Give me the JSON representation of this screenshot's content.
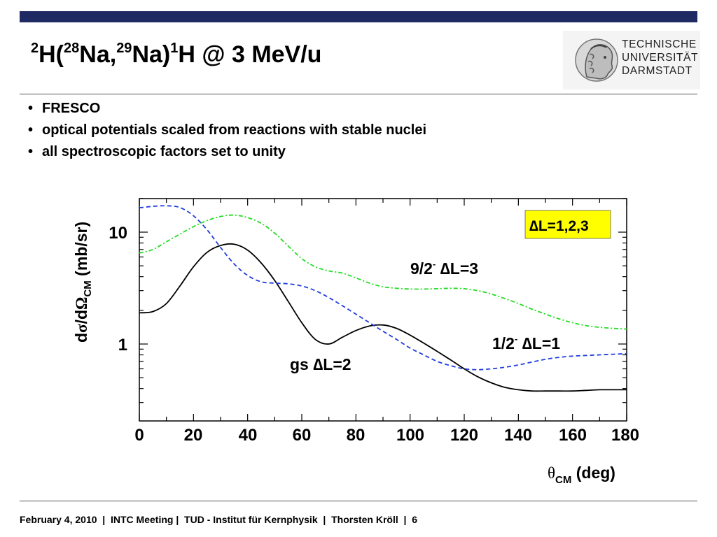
{
  "slide": {
    "title": {
      "m1": "2",
      "t1": "H(",
      "m2": "28",
      "t2": "Na,",
      "m3": "29",
      "t3": "Na)",
      "m4": "1",
      "t4": "H @ 3 MeV/u"
    },
    "logo": {
      "lines": [
        "TECHNISCHE",
        "UNIVERSITÄT",
        "DARMSTADT"
      ]
    },
    "bullets": [
      "FRESCO",
      "optical potentials scaled from reactions with stable nuclei",
      "all spectroscopic factors set to unity"
    ],
    "footer": {
      "date": "February 4, 2010",
      "event": "INTC Meeting",
      "institute": "TUD - Institut für Kernphysik",
      "author": "Thorsten Kröll",
      "page": "6",
      "separator": "|"
    }
  },
  "colors": {
    "brand_bar": "#1f2a63",
    "series_gs": "#000000",
    "series_half": "#1f3de0",
    "series_ninehalf": "#22dd22",
    "highlight_box": "#ffff00"
  },
  "chart_data": {
    "type": "line",
    "xlim": [
      0,
      180
    ],
    "ylim": [
      0.2,
      20
    ],
    "yscale": "log",
    "x_ticks": [
      "0",
      "20",
      "40",
      "60",
      "80",
      "100",
      "120",
      "140",
      "160",
      "180"
    ],
    "x_tick_values": [
      0,
      20,
      40,
      60,
      80,
      100,
      120,
      140,
      160,
      180
    ],
    "y_ticks": [
      "1",
      "10"
    ],
    "y_tick_values": [
      1,
      10
    ],
    "ylabel": {
      "d1": "d",
      "sigma": "σ",
      "mid": "/d",
      "omega": "Ω",
      "sub": "CM",
      "unit": " (mb/sr)"
    },
    "xlabel": {
      "theta": "θ",
      "sub": "CM",
      "unit": " (deg)"
    },
    "box_label": "∆L=1,2,3",
    "annotations": {
      "gs": "gs ∆L=2",
      "half": {
        "base": "1/2",
        "sup": "-",
        "rest": " ∆L=1"
      },
      "ninehalf": {
        "base": "9/2",
        "sup": "-",
        "rest": " ∆L=3"
      }
    },
    "series": [
      {
        "label_ref": "gs",
        "style": "solid",
        "x": [
          0,
          5,
          10,
          15,
          20,
          25,
          30,
          35,
          40,
          45,
          50,
          55,
          60,
          65,
          70,
          75,
          80,
          85,
          90,
          95,
          100,
          105,
          110,
          115,
          120,
          125,
          130,
          135,
          140,
          145,
          150,
          155,
          160,
          165,
          170,
          175,
          180
        ],
        "y": [
          1.9,
          1.95,
          2.3,
          3.3,
          4.9,
          6.6,
          7.6,
          7.8,
          6.9,
          5.3,
          3.7,
          2.4,
          1.55,
          1.1,
          1.0,
          1.15,
          1.32,
          1.45,
          1.48,
          1.38,
          1.2,
          1.02,
          0.86,
          0.72,
          0.6,
          0.51,
          0.45,
          0.41,
          0.39,
          0.38,
          0.38,
          0.38,
          0.38,
          0.385,
          0.39,
          0.39,
          0.39
        ]
      },
      {
        "label_ref": "half",
        "style": "dashed",
        "x": [
          0,
          5,
          10,
          15,
          20,
          25,
          30,
          35,
          40,
          45,
          50,
          55,
          60,
          65,
          70,
          75,
          80,
          85,
          90,
          95,
          100,
          105,
          110,
          115,
          120,
          125,
          130,
          135,
          140,
          145,
          150,
          155,
          160,
          165,
          170,
          175,
          180
        ],
        "y": [
          16.5,
          17,
          17.2,
          16.6,
          14,
          10.5,
          7.3,
          5.2,
          4.1,
          3.6,
          3.5,
          3.45,
          3.3,
          3.0,
          2.6,
          2.2,
          1.85,
          1.55,
          1.3,
          1.1,
          0.92,
          0.8,
          0.7,
          0.64,
          0.6,
          0.59,
          0.6,
          0.62,
          0.65,
          0.69,
          0.73,
          0.76,
          0.78,
          0.79,
          0.8,
          0.81,
          0.82
        ]
      },
      {
        "label_ref": "ninehalf",
        "style": "dashdot",
        "x": [
          0,
          5,
          10,
          15,
          20,
          25,
          30,
          35,
          40,
          45,
          50,
          55,
          60,
          65,
          70,
          75,
          80,
          85,
          90,
          95,
          100,
          105,
          110,
          115,
          120,
          125,
          130,
          135,
          140,
          145,
          150,
          155,
          160,
          165,
          170,
          175,
          180
        ],
        "y": [
          6.5,
          7.0,
          8.2,
          9.6,
          11.2,
          12.7,
          13.8,
          14.2,
          13.5,
          12.0,
          9.8,
          7.5,
          5.8,
          4.9,
          4.5,
          4.3,
          3.9,
          3.5,
          3.25,
          3.15,
          3.1,
          3.1,
          3.12,
          3.15,
          3.12,
          3.0,
          2.8,
          2.55,
          2.3,
          2.05,
          1.85,
          1.68,
          1.55,
          1.46,
          1.41,
          1.38,
          1.36
        ]
      }
    ]
  }
}
